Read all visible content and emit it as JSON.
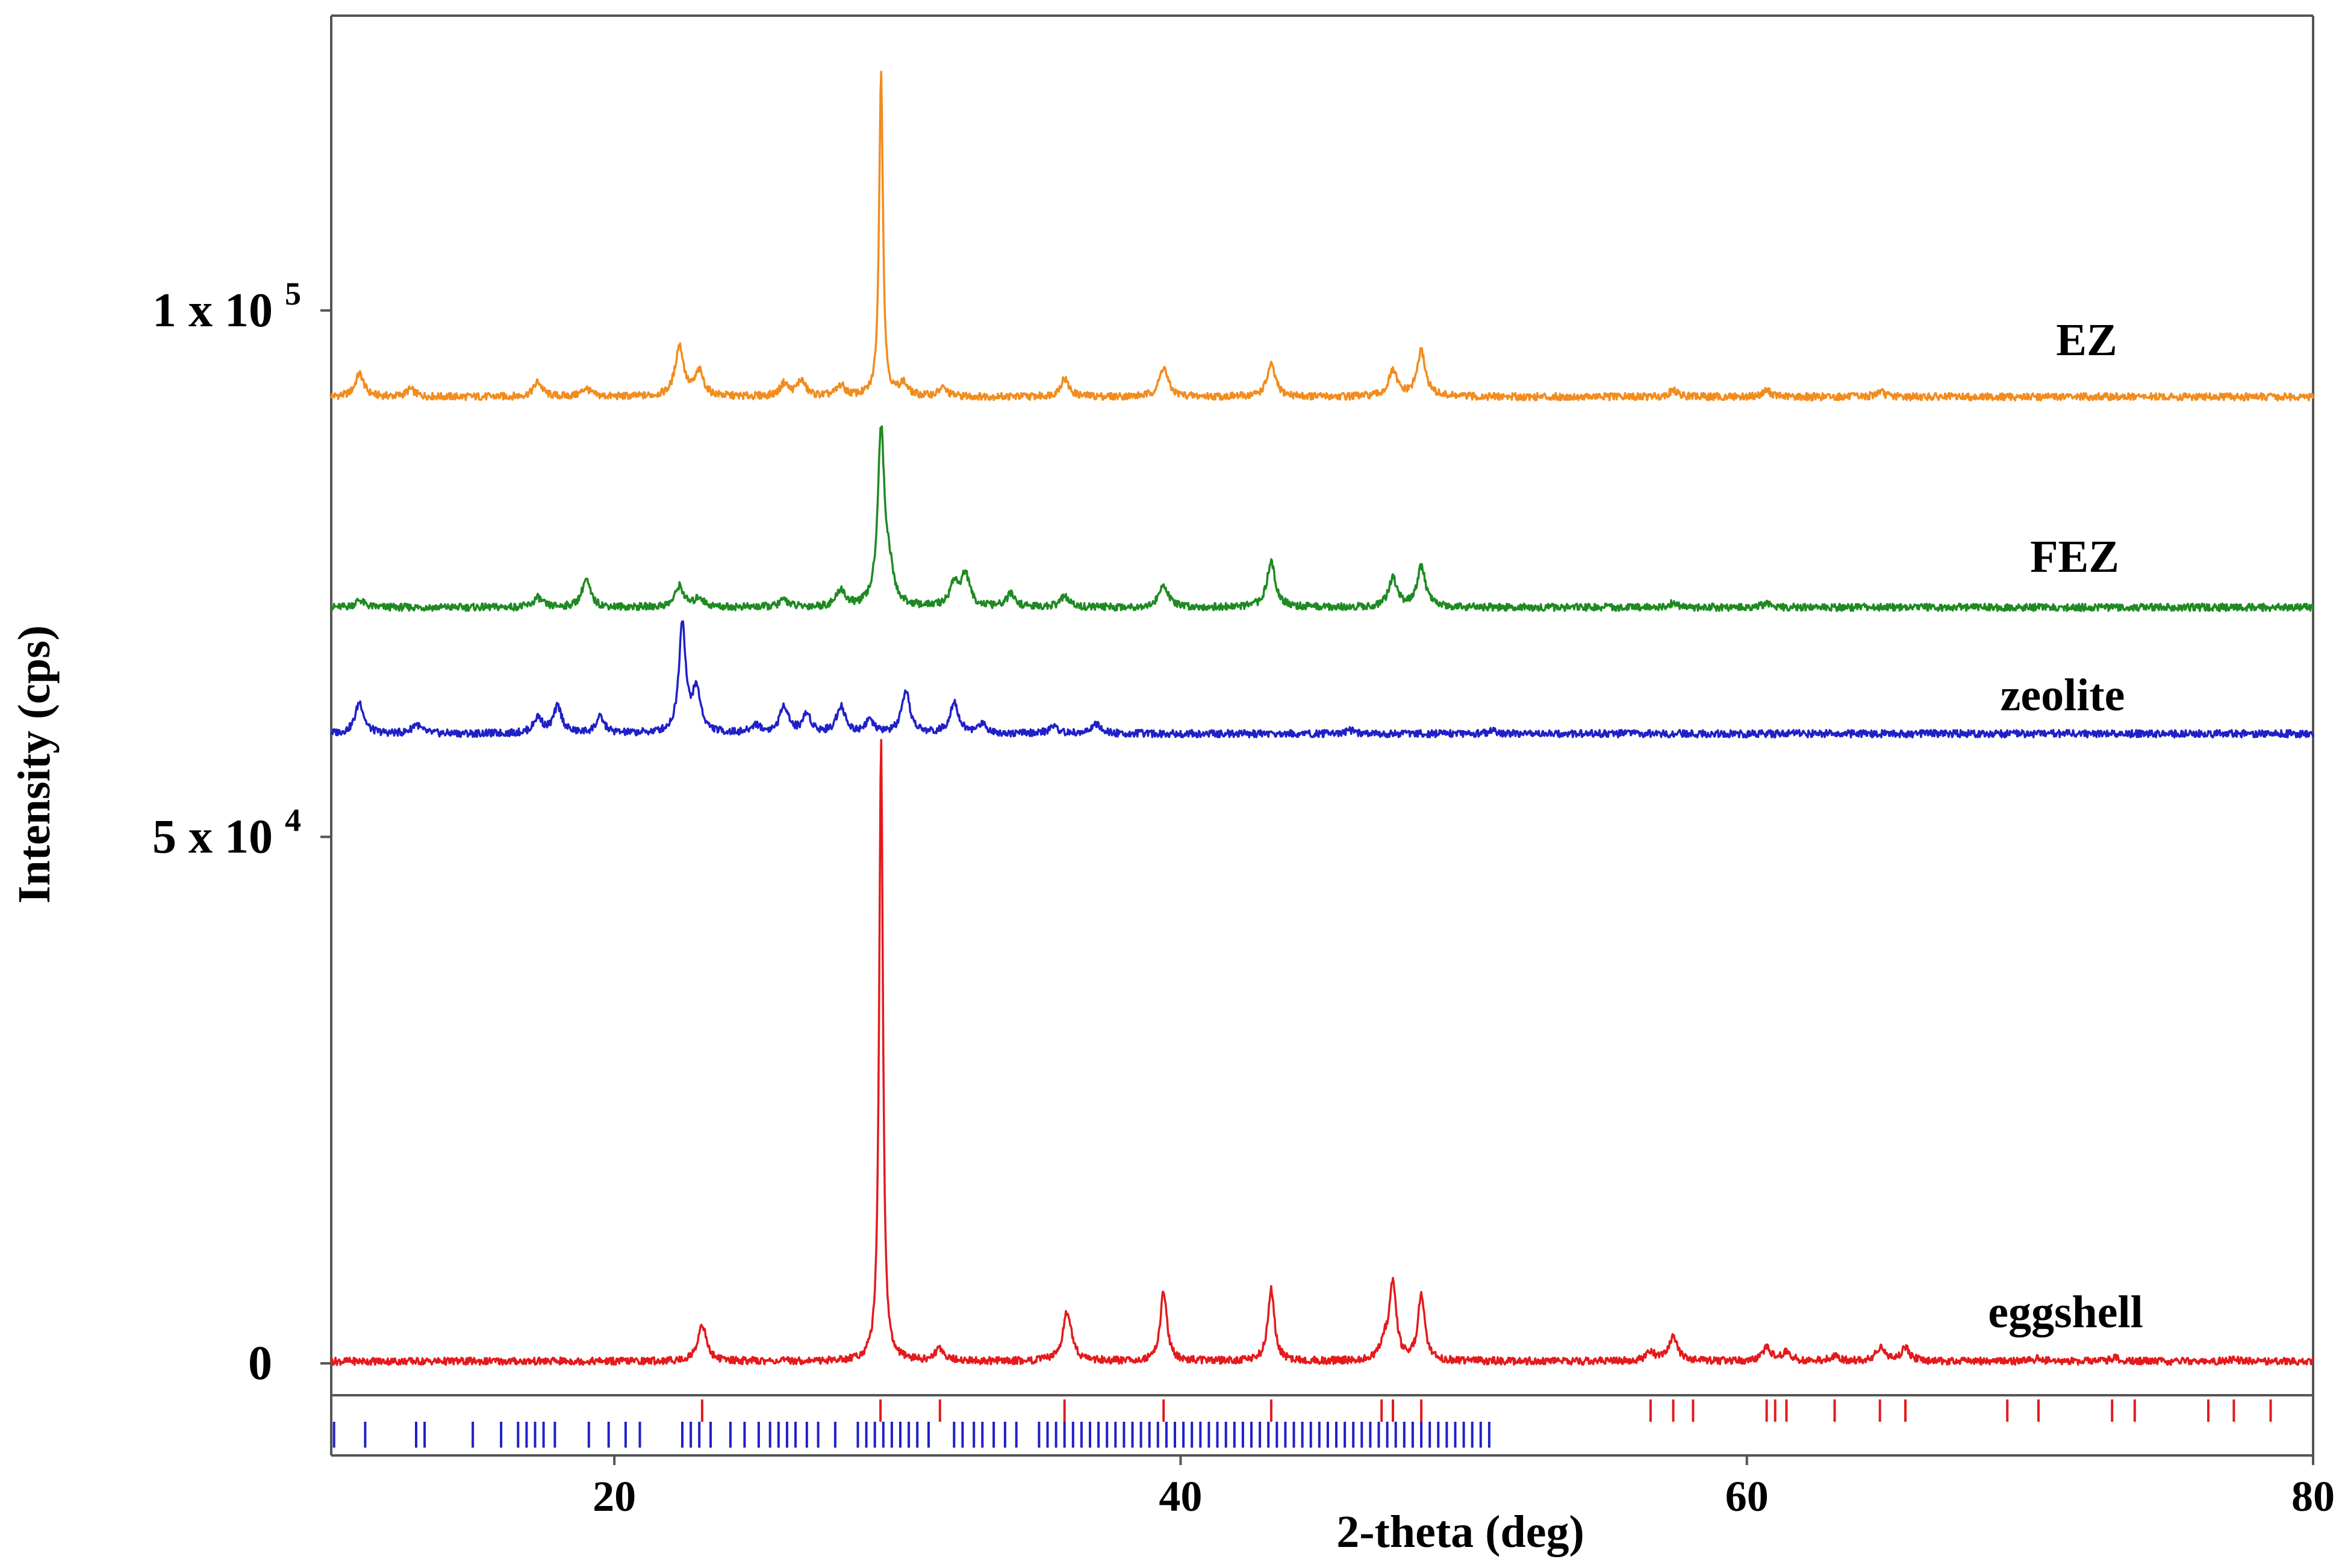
{
  "chart_data": {
    "type": "line",
    "xlabel": "2-theta (deg)",
    "ylabel": "Intensity (cps)",
    "xlim": [
      10,
      80
    ],
    "ylim": [
      -2000,
      128000
    ],
    "x_ticks": [
      {
        "value": 20,
        "label": "20"
      },
      {
        "value": 40,
        "label": "40"
      },
      {
        "value": 60,
        "label": "60"
      },
      {
        "value": 80,
        "label": "80"
      }
    ],
    "y_ticks": [
      {
        "value": 0,
        "label": "0"
      },
      {
        "value": 50000,
        "label": "5 x 10 4"
      },
      {
        "value": 100000,
        "label": "1 x 10 5"
      }
    ],
    "grid": false,
    "legend": "none",
    "series": [
      {
        "name": "EZ",
        "color": "#f28c1e",
        "baseline": 91800,
        "peaks": [
          [
            11,
            2200
          ],
          [
            12.8,
            700
          ],
          [
            17.3,
            1400
          ],
          [
            19,
            800
          ],
          [
            22.3,
            4800
          ],
          [
            23,
            2300
          ],
          [
            26,
            1200
          ],
          [
            26.6,
            1500
          ],
          [
            28,
            1000
          ],
          [
            29.42,
            31000
          ],
          [
            30.2,
            1200
          ],
          [
            31.6,
            800
          ],
          [
            35.9,
            1700
          ],
          [
            39.4,
            2800
          ],
          [
            43.2,
            3000
          ],
          [
            47.5,
            2400
          ],
          [
            48.5,
            4300
          ],
          [
            57.4,
            600
          ],
          [
            60.7,
            600
          ],
          [
            64.7,
            500
          ]
        ]
      },
      {
        "name": "FEZ",
        "color": "#1e8a22",
        "baseline": 71800,
        "peaks": [
          [
            11,
            700
          ],
          [
            17.3,
            900
          ],
          [
            19,
            2600
          ],
          [
            22.3,
            2000
          ],
          [
            23,
            900
          ],
          [
            26,
            700
          ],
          [
            28,
            1600
          ],
          [
            29.42,
            16500
          ],
          [
            29.7,
            3000
          ],
          [
            32,
            2200
          ],
          [
            32.4,
            3000
          ],
          [
            34,
            1200
          ],
          [
            35.9,
            1000
          ],
          [
            39.4,
            2200
          ],
          [
            43.2,
            4300
          ],
          [
            47.5,
            2700
          ],
          [
            48.5,
            3800
          ],
          [
            57.4,
            400
          ],
          [
            60.7,
            400
          ]
        ]
      },
      {
        "name": "zeolite",
        "color": "#2020c8",
        "baseline": 59800,
        "peaks": [
          [
            11,
            3000
          ],
          [
            13,
            900
          ],
          [
            17.3,
            1500
          ],
          [
            18,
            2500
          ],
          [
            19.5,
            1500
          ],
          [
            22.4,
            10500
          ],
          [
            22.9,
            4000
          ],
          [
            25,
            800
          ],
          [
            26,
            2600
          ],
          [
            26.8,
            1800
          ],
          [
            28,
            2600
          ],
          [
            29,
            1200
          ],
          [
            30.3,
            3800
          ],
          [
            32,
            3000
          ],
          [
            33,
            900
          ],
          [
            35.5,
            700
          ],
          [
            37,
            900
          ],
          [
            46,
            300
          ],
          [
            51,
            300
          ]
        ]
      },
      {
        "name": "eggshell",
        "color": "#e41a1c",
        "baseline": 200,
        "peaks": [
          [
            23.1,
            3500
          ],
          [
            29.42,
            59000
          ],
          [
            31.5,
            1200
          ],
          [
            36,
            4800
          ],
          [
            39.4,
            6700
          ],
          [
            43.2,
            6800
          ],
          [
            47.2,
            1600
          ],
          [
            47.5,
            7400
          ],
          [
            48.5,
            6300
          ],
          [
            56.6,
            900
          ],
          [
            57.4,
            2300
          ],
          [
            60.7,
            1300
          ],
          [
            61.4,
            900
          ],
          [
            63.1,
            500
          ],
          [
            64.7,
            1300
          ],
          [
            65.6,
            1300
          ],
          [
            70.3,
            300
          ],
          [
            73,
            300
          ],
          [
            77.2,
            200
          ]
        ]
      }
    ],
    "reference_ticks": [
      {
        "color": "#e41a1c",
        "row": 1,
        "positions": [
          23.1,
          29.4,
          31.5,
          35.9,
          39.4,
          43.2,
          47.1,
          47.5,
          48.5,
          56.6,
          57.4,
          58.1,
          60.7,
          61.0,
          61.4,
          63.1,
          64.7,
          65.6,
          69.2,
          70.3,
          72.9,
          73.7,
          76.3,
          77.2,
          78.5
        ]
      },
      {
        "color": "#2020c8",
        "row": 2,
        "positions": [
          10.1,
          11.2,
          13.0,
          13.3,
          15.0,
          16.0,
          16.6,
          16.9,
          17.2,
          17.5,
          17.9,
          19.1,
          19.8,
          20.4,
          20.9,
          22.4,
          22.7,
          23.0,
          23.4,
          24.1,
          24.6,
          25.1,
          25.5,
          25.8,
          26.1,
          26.4,
          26.8,
          27.2,
          27.8,
          28.6,
          28.9,
          29.2,
          29.5,
          29.8,
          30.1,
          30.4,
          30.7,
          31.1,
          32.0,
          32.3,
          32.7,
          33.0,
          33.4,
          33.8,
          34.2,
          35.0,
          35.3,
          35.6,
          35.9,
          36.2,
          36.5,
          36.8,
          37.1,
          37.4,
          37.7,
          38.0,
          38.3,
          38.6,
          38.9,
          39.2,
          39.5,
          39.8,
          40.1,
          40.4,
          40.7,
          41.0,
          41.3,
          41.6,
          41.9,
          42.2,
          42.5,
          42.8,
          43.1,
          43.4,
          43.7,
          44.0,
          44.3,
          44.6,
          44.9,
          45.2,
          45.5,
          45.8,
          46.1,
          46.4,
          46.7,
          47.0,
          47.3,
          47.6,
          47.9,
          48.2,
          48.5,
          48.8,
          49.1,
          49.4,
          49.7,
          50.0,
          50.3,
          50.6,
          50.9
        ]
      }
    ]
  }
}
